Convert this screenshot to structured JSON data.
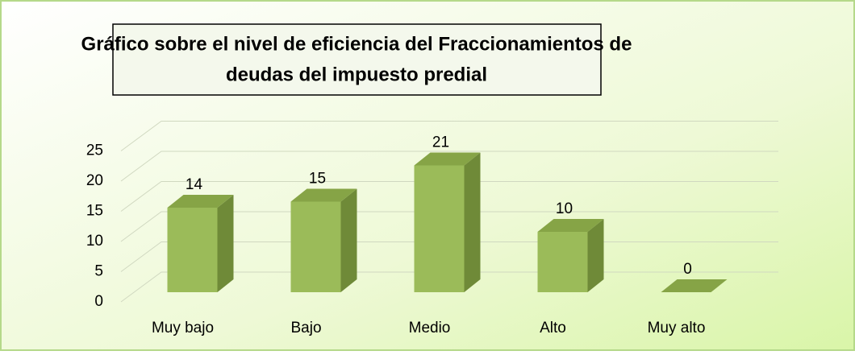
{
  "chart_data": {
    "type": "bar3d",
    "title": [
      "Gráfico sobre el nivel de eficiencia del Fraccionamientos de",
      "deudas del impuesto predial"
    ],
    "categories": [
      "Muy bajo",
      "Bajo",
      "Medio",
      "Alto",
      "Muy alto"
    ],
    "values": [
      14,
      15,
      21,
      10,
      0
    ],
    "color": "#9bbb59",
    "ylim": [
      0,
      25
    ],
    "yticks": [
      0,
      5,
      10,
      15,
      20,
      25
    ],
    "grid": true
  }
}
